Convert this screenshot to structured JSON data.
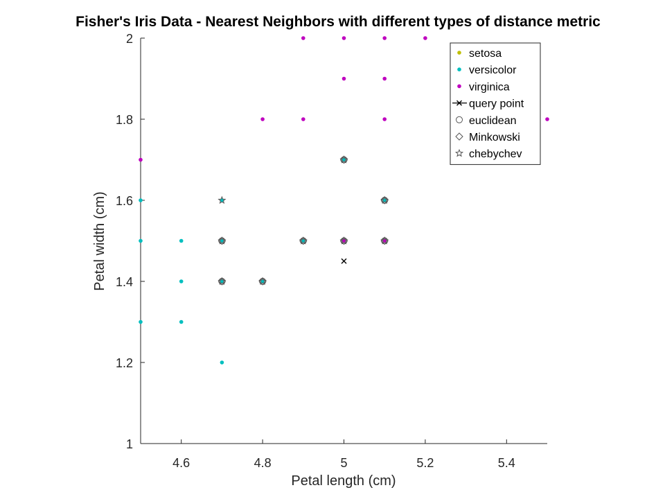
{
  "chart_data": {
    "type": "scatter",
    "title": "Fisher's Iris Data - Nearest Neighbors with different types of distance metric",
    "xlabel": "Petal length (cm)",
    "ylabel": "Petal width (cm)",
    "xlim": [
      4.5,
      5.5
    ],
    "ylim": [
      1,
      2
    ],
    "xticks": [
      4.6,
      4.8,
      5,
      5.2,
      5.4
    ],
    "xtick_labels": [
      "4.6",
      "4.8",
      "5",
      "5.2",
      "5.4"
    ],
    "yticks": [
      1,
      1.2,
      1.4,
      1.6,
      1.8,
      2
    ],
    "ytick_labels": [
      "1",
      "1.2",
      "1.4",
      "1.6",
      "1.8",
      "2"
    ],
    "grid": false,
    "legend_position": "top-right",
    "series": [
      {
        "name": "setosa",
        "marker": "dot",
        "color": "#bfbf00",
        "x": [],
        "y": []
      },
      {
        "name": "versicolor",
        "marker": "dot",
        "color": "#00bfbf",
        "x": [
          4.5,
          4.5,
          4.5,
          4.6,
          4.6,
          4.6,
          4.7,
          4.7,
          4.7,
          4.7,
          4.8,
          4.9,
          5.0,
          5.1
        ],
        "y": [
          1.3,
          1.5,
          1.6,
          1.3,
          1.4,
          1.5,
          1.2,
          1.4,
          1.5,
          1.6,
          1.4,
          1.5,
          1.7,
          1.6
        ]
      },
      {
        "name": "virginica",
        "marker": "dot",
        "color": "#bf00bf",
        "x": [
          4.5,
          4.8,
          4.9,
          4.9,
          5.0,
          5.0,
          5.0,
          5.1,
          5.1,
          5.1,
          5.1,
          5.2,
          5.5,
          5.0,
          5.1
        ],
        "y": [
          1.7,
          1.8,
          1.8,
          2.0,
          1.5,
          1.9,
          2.0,
          1.5,
          1.8,
          1.9,
          2.0,
          2.0,
          1.8,
          1.5,
          1.5
        ]
      },
      {
        "name": "query point",
        "marker": "x",
        "color": "#000000",
        "x": [
          5.0
        ],
        "y": [
          1.45
        ]
      },
      {
        "name": "euclidean",
        "marker": "circle",
        "color": "#555555",
        "x": [
          4.7,
          4.7,
          4.8,
          4.9,
          5.0,
          5.0,
          5.1,
          5.1
        ],
        "y": [
          1.4,
          1.5,
          1.4,
          1.5,
          1.5,
          1.7,
          1.5,
          1.6
        ]
      },
      {
        "name": "Minkowski",
        "marker": "diamond",
        "color": "#555555",
        "x": [
          4.7,
          4.7,
          4.8,
          4.9,
          5.0,
          5.0,
          5.1,
          5.1
        ],
        "y": [
          1.4,
          1.5,
          1.4,
          1.5,
          1.5,
          1.7,
          1.5,
          1.6
        ]
      },
      {
        "name": "chebychev",
        "marker": "star",
        "color": "#555555",
        "x": [
          4.7,
          4.7,
          4.7,
          4.8,
          4.9,
          5.0,
          5.0,
          5.1,
          5.1
        ],
        "y": [
          1.4,
          1.5,
          1.6,
          1.4,
          1.5,
          1.5,
          1.7,
          1.5,
          1.6
        ]
      }
    ]
  }
}
